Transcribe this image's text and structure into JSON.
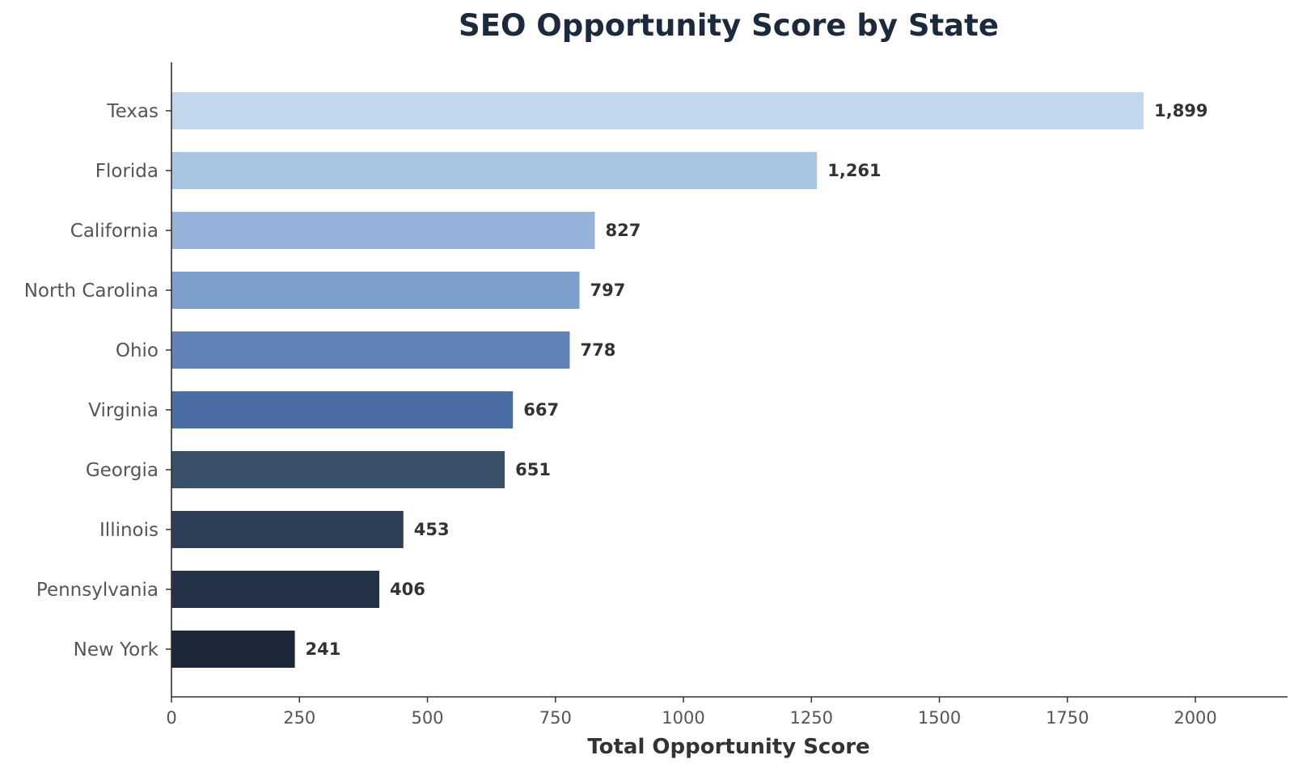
{
  "chart_data": {
    "type": "bar",
    "orientation": "horizontal",
    "title": "SEO Opportunity Score by State",
    "xlabel": "Total Opportunity Score",
    "ylabel": "",
    "categories": [
      "Texas",
      "Florida",
      "California",
      "North Carolina",
      "Ohio",
      "Virginia",
      "Georgia",
      "Illinois",
      "Pennsylvania",
      "New York"
    ],
    "values": [
      1899,
      1261,
      827,
      797,
      778,
      667,
      651,
      453,
      406,
      241
    ],
    "value_labels": [
      "1,899",
      "1,261",
      "827",
      "797",
      "778",
      "667",
      "651",
      "453",
      "406",
      "241"
    ],
    "colors": [
      "#c3d7ec",
      "#a8c5e2",
      "#94b2da",
      "#7c9fcc",
      "#6183b7",
      "#4a6ea3",
      "#3a5069",
      "#2d3e56",
      "#233247",
      "#1c2838"
    ],
    "xlim": [
      0,
      2180
    ],
    "xticks": [
      0,
      250,
      500,
      750,
      1000,
      1250,
      1500,
      1750,
      2000
    ],
    "xtick_labels": [
      "0",
      "250",
      "500",
      "750",
      "1000",
      "1250",
      "1500",
      "1750",
      "2000"
    ],
    "grid": false,
    "legend": "none"
  }
}
